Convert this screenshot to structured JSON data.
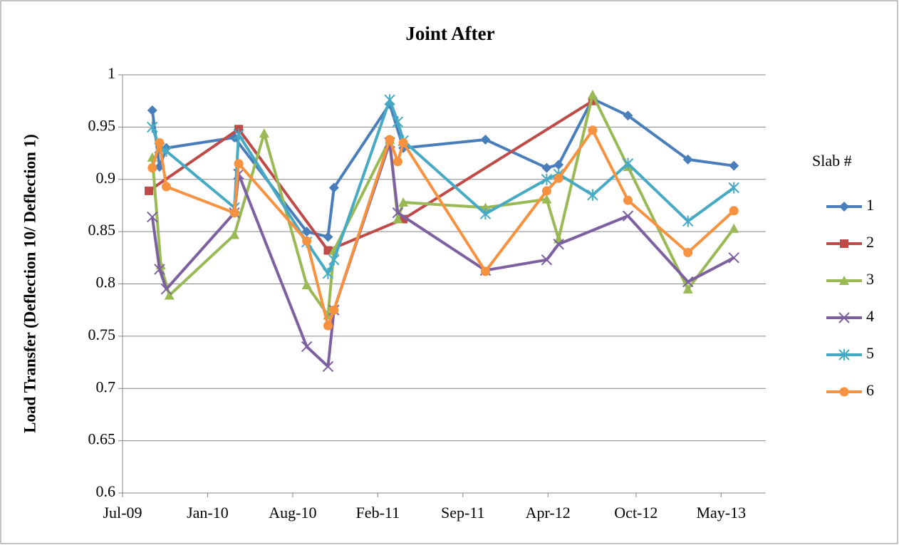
{
  "chart_data": {
    "type": "line",
    "title": "Joint After",
    "y_label": "Load Transfer (Deflection 10/ Deflection 1)",
    "legend_title": "Slab #",
    "legend_position": "right",
    "grid": true,
    "ylim": [
      0.6,
      1
    ],
    "yticks": [
      0.6,
      0.65,
      0.7,
      0.75,
      0.8,
      0.85,
      0.9,
      0.95,
      1
    ],
    "xlim": [
      "2009-07-07",
      "2013-08-27"
    ],
    "xticks": [
      {
        "value": "2009-07-07",
        "label": "Jul-09"
      },
      {
        "value": "2010-01-23",
        "label": "Jan-10"
      },
      {
        "value": "2010-08-11",
        "label": "Aug-10"
      },
      {
        "value": "2011-02-27",
        "label": "Feb-11"
      },
      {
        "value": "2011-09-15",
        "label": "Sep-11"
      },
      {
        "value": "2012-04-02",
        "label": "Apr-12"
      },
      {
        "value": "2012-10-26",
        "label": "Oct-12"
      },
      {
        "value": "2013-05-14",
        "label": "May-13"
      }
    ],
    "series": [
      {
        "name": "1",
        "color": "#4a7ebb",
        "marker": "diamond",
        "x": [
          "2009-09-15",
          "2009-10-02",
          "2009-10-18",
          "2010-03-27",
          "2010-09-13",
          "2010-11-02",
          "2010-11-16",
          "2011-03-27",
          "2011-04-28",
          "2011-11-07",
          "2012-03-30",
          "2012-04-27",
          "2012-07-16",
          "2012-10-07",
          "2013-02-25",
          "2013-06-13"
        ],
        "values": [
          0.966,
          0.912,
          0.93,
          0.94,
          0.85,
          0.845,
          0.892,
          0.972,
          0.93,
          0.938,
          0.911,
          0.914,
          0.977,
          0.961,
          0.919,
          0.913
        ]
      },
      {
        "name": "2",
        "color": "#be4b48",
        "marker": "square",
        "x": [
          "2009-09-07",
          "2010-04-06",
          "2010-11-02",
          "2011-04-28",
          "2012-07-16"
        ],
        "values": [
          0.889,
          0.948,
          0.832,
          0.862,
          0.975
        ]
      },
      {
        "name": "3",
        "color": "#98b954",
        "marker": "triangle",
        "x": [
          "2009-09-15",
          "2009-10-05",
          "2009-10-25",
          "2010-03-27",
          "2010-06-05",
          "2010-09-13",
          "2010-11-02",
          "2010-11-16",
          "2011-03-27",
          "2011-04-15",
          "2011-04-28",
          "2011-11-07",
          "2012-03-30",
          "2012-04-27",
          "2012-07-16",
          "2012-10-07",
          "2013-02-25",
          "2013-06-13"
        ],
        "values": [
          0.921,
          0.818,
          0.789,
          0.847,
          0.944,
          0.799,
          0.77,
          0.832,
          0.938,
          0.862,
          0.878,
          0.873,
          0.881,
          0.843,
          0.981,
          0.912,
          0.795,
          0.853
        ]
      },
      {
        "name": "4",
        "color": "#7d60a0",
        "marker": "x",
        "x": [
          "2009-09-15",
          "2009-10-02",
          "2009-10-18",
          "2010-03-27",
          "2010-04-06",
          "2010-09-13",
          "2010-11-02",
          "2010-11-16",
          "2011-03-27",
          "2011-04-15",
          "2011-11-07",
          "2012-03-30",
          "2012-04-27",
          "2012-10-07",
          "2013-02-25",
          "2013-06-13"
        ],
        "values": [
          0.864,
          0.814,
          0.795,
          0.868,
          0.905,
          0.74,
          0.721,
          0.775,
          0.935,
          0.868,
          0.813,
          0.823,
          0.838,
          0.865,
          0.802,
          0.825
        ]
      },
      {
        "name": "5",
        "color": "#46aac5",
        "marker": "star",
        "x": [
          "2009-09-15",
          "2009-10-02",
          "2009-10-18",
          "2010-03-27",
          "2010-04-06",
          "2010-09-13",
          "2010-11-02",
          "2010-11-16",
          "2011-03-27",
          "2011-04-15",
          "2011-04-28",
          "2011-11-07",
          "2012-03-30",
          "2012-04-27",
          "2012-07-16",
          "2012-10-07",
          "2013-02-25",
          "2013-06-13"
        ],
        "values": [
          0.95,
          0.93,
          0.927,
          0.873,
          0.943,
          0.84,
          0.81,
          0.823,
          0.976,
          0.955,
          0.937,
          0.867,
          0.9,
          0.905,
          0.885,
          0.915,
          0.86,
          0.892
        ]
      },
      {
        "name": "6",
        "color": "#f69240",
        "marker": "circle",
        "x": [
          "2009-09-15",
          "2009-10-02",
          "2009-10-18",
          "2010-03-27",
          "2010-04-06",
          "2010-09-13",
          "2010-11-02",
          "2010-11-16",
          "2011-03-27",
          "2011-04-15",
          "2011-04-28",
          "2011-11-07",
          "2012-03-30",
          "2012-04-27",
          "2012-07-16",
          "2012-10-07",
          "2013-02-25",
          "2013-06-13"
        ],
        "values": [
          0.911,
          0.935,
          0.893,
          0.868,
          0.915,
          0.841,
          0.76,
          0.775,
          0.938,
          0.917,
          0.935,
          0.812,
          0.889,
          0.901,
          0.947,
          0.88,
          0.83,
          0.87
        ]
      }
    ]
  }
}
